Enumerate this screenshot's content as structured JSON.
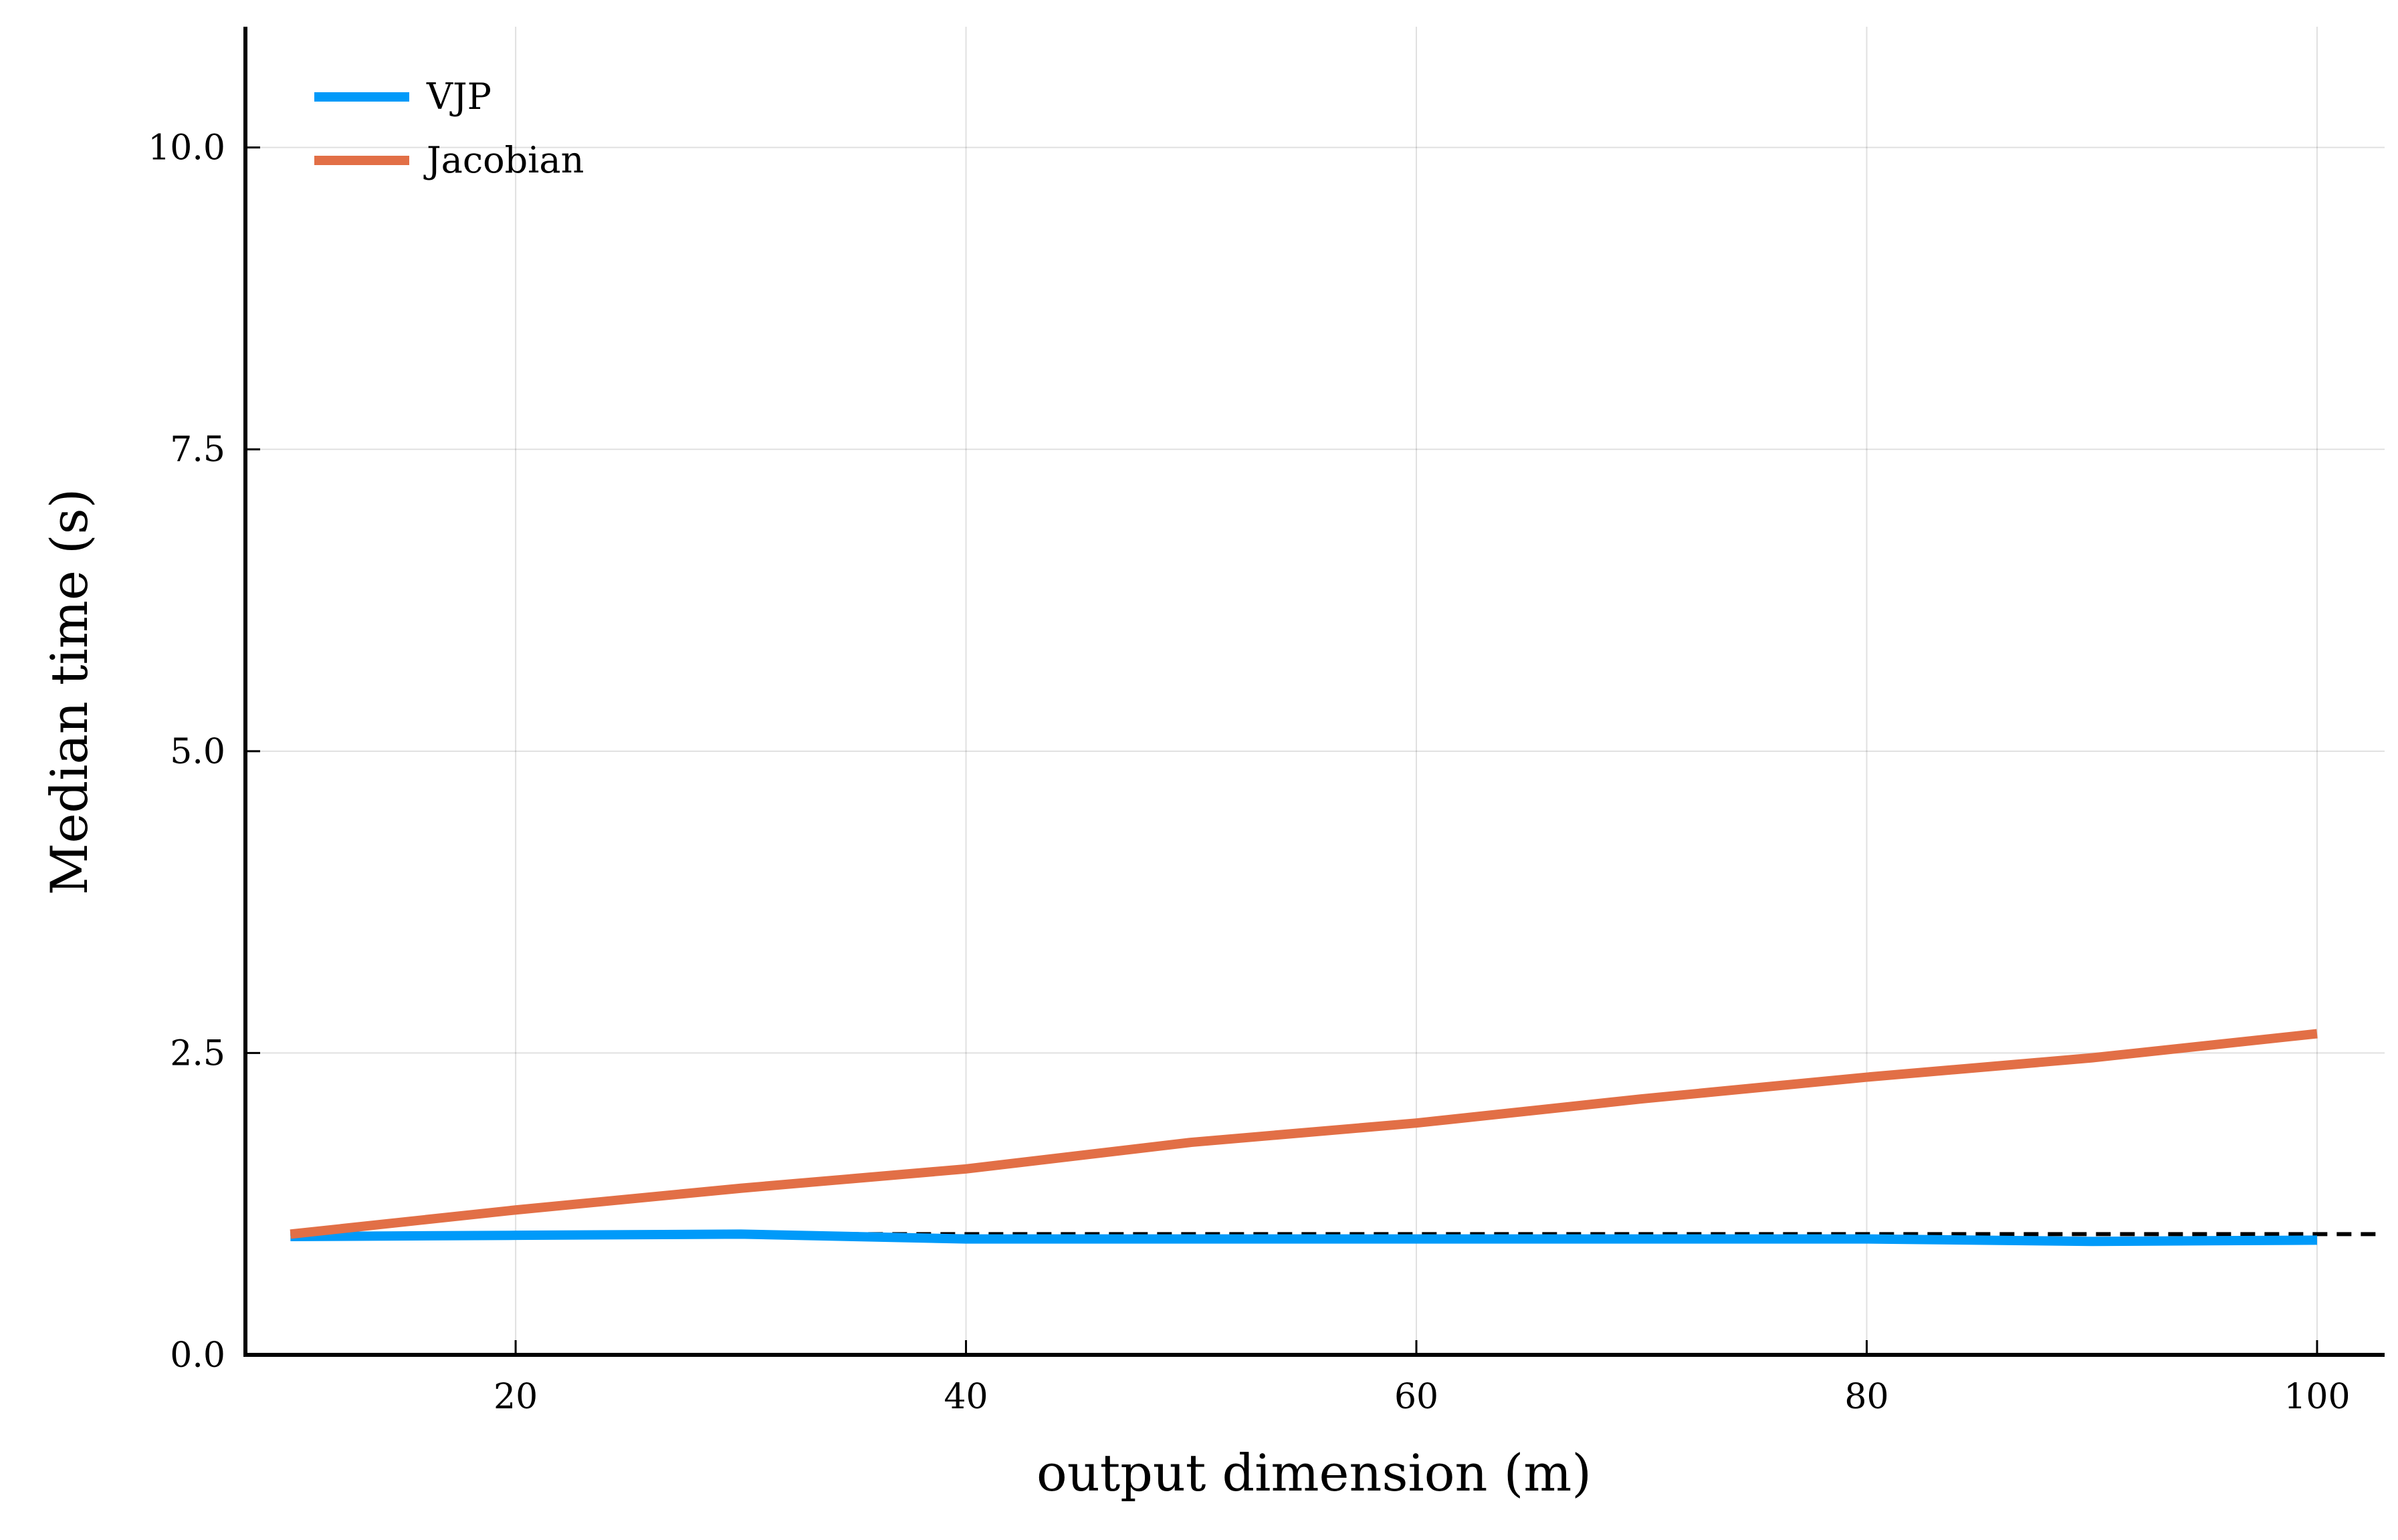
{
  "chart_data": {
    "type": "line",
    "title": "",
    "xlabel": "output dimension (m)",
    "ylabel": "Median time (s)",
    "xlim": [
      8,
      103
    ],
    "ylim": [
      0,
      11
    ],
    "xticks": [
      20,
      40,
      60,
      80,
      100
    ],
    "xtick_labels": [
      "20",
      "40",
      "60",
      "80",
      "100"
    ],
    "yticks": [
      0,
      2.5,
      5,
      7.5,
      10
    ],
    "ytick_labels": [
      "0.0",
      "2.5",
      "5.0",
      "7.5",
      "10.0"
    ],
    "grid": true,
    "legend_position": "top-left",
    "x": [
      10,
      20,
      30,
      40,
      50,
      60,
      70,
      80,
      90,
      100
    ],
    "series": [
      {
        "name": "VJP",
        "color": "#009af9",
        "values": [
          0.98,
          0.99,
          1.0,
          0.96,
          0.96,
          0.96,
          0.96,
          0.96,
          0.94,
          0.95
        ]
      },
      {
        "name": "Jacobian",
        "color": "#e26f46",
        "values": [
          1.0,
          1.2,
          1.38,
          1.54,
          1.76,
          1.92,
          2.12,
          2.3,
          2.46,
          2.66
        ]
      }
    ],
    "reference_line": {
      "y": 1.0,
      "style": "dashed",
      "color": "#000000"
    }
  }
}
